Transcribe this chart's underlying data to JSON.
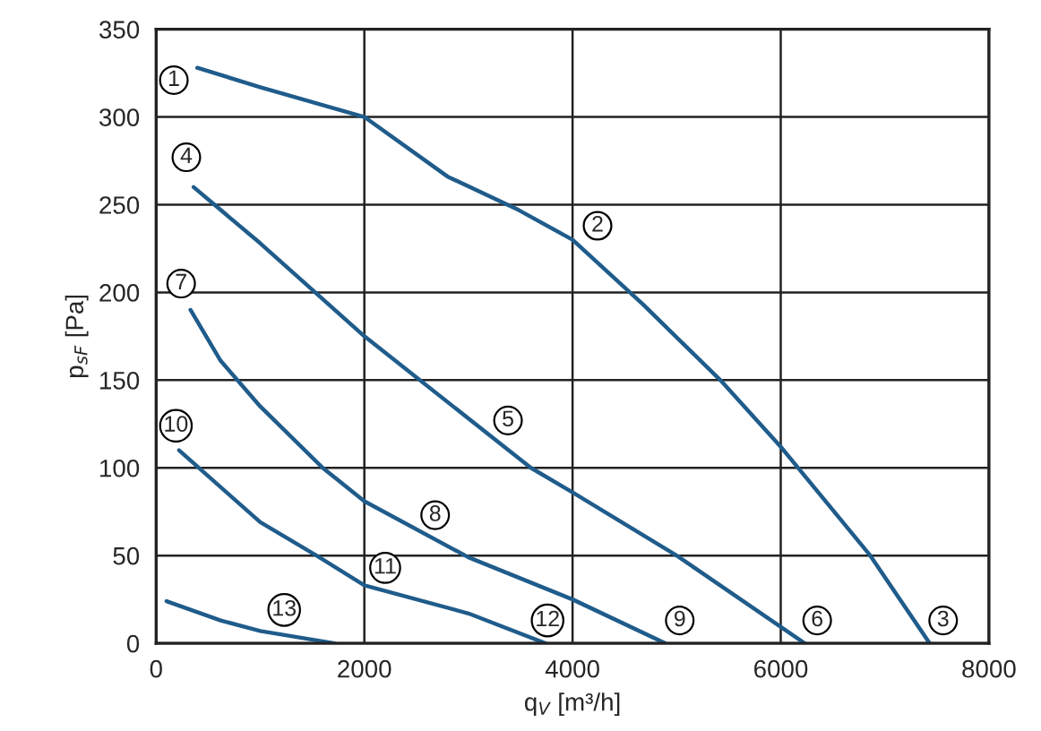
{
  "chart_data": {
    "type": "line",
    "xlabel": "q$_{V}$ [m³/h]",
    "ylabel": "p$_{sF}$ [Pa]",
    "xlim": [
      0,
      8000
    ],
    "ylim": [
      0,
      350
    ],
    "xticks": [
      0,
      2000,
      4000,
      6000,
      8000
    ],
    "yticks": [
      0,
      50,
      100,
      150,
      200,
      250,
      300,
      350
    ],
    "grid": true,
    "marker": "none",
    "line_style": "solid",
    "legend": false,
    "series": [
      {
        "color": "#1f5c8b",
        "x": [
          395,
          1000,
          2000,
          2800,
          3480,
          4000,
          4680,
          5420,
          6000,
          6860,
          7430
        ],
        "values": [
          328,
          317,
          300,
          266,
          247,
          230,
          193,
          150,
          112,
          50,
          0
        ]
      },
      {
        "color": "#1f5c8b",
        "x": [
          360,
          1000,
          2000,
          3600,
          4000,
          5000,
          6230
        ],
        "values": [
          260,
          228,
          175,
          100,
          86,
          50,
          0
        ]
      },
      {
        "color": "#1f5c8b",
        "x": [
          330,
          620,
          1000,
          1600,
          2000,
          3000,
          4000,
          4890
        ],
        "values": [
          190,
          161,
          135,
          100,
          81,
          49,
          25,
          0
        ]
      },
      {
        "color": "#1f5c8b",
        "x": [
          220,
          1000,
          1540,
          2000,
          3000,
          3740
        ],
        "values": [
          110,
          69,
          50,
          33,
          17,
          0
        ]
      },
      {
        "color": "#1f5c8b",
        "x": [
          100,
          620,
          1000,
          1715
        ],
        "values": [
          24,
          13,
          7,
          0
        ]
      }
    ],
    "annotations": [
      {
        "text": "1",
        "x": 170,
        "y": 321
      },
      {
        "text": "2",
        "x": 4240,
        "y": 238
      },
      {
        "text": "3",
        "x": 7560,
        "y": 13
      },
      {
        "text": "4",
        "x": 290,
        "y": 277
      },
      {
        "text": "5",
        "x": 3380,
        "y": 127
      },
      {
        "text": "6",
        "x": 6350,
        "y": 13
      },
      {
        "text": "7",
        "x": 240,
        "y": 205
      },
      {
        "text": "8",
        "x": 2680,
        "y": 73
      },
      {
        "text": "9",
        "x": 5030,
        "y": 13
      },
      {
        "text": "10",
        "x": 190,
        "y": 124
      },
      {
        "text": "11",
        "x": 2200,
        "y": 43
      },
      {
        "text": "12",
        "x": 3760,
        "y": 13
      },
      {
        "text": "13",
        "x": 1230,
        "y": 19
      }
    ]
  }
}
